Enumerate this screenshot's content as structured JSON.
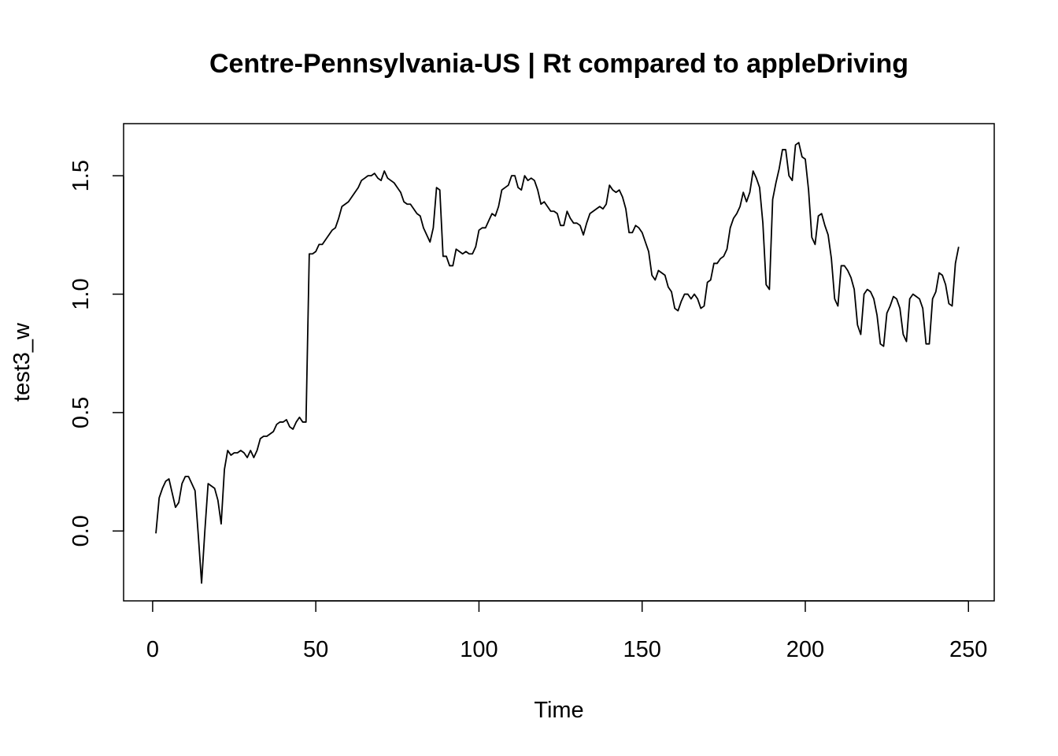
{
  "chart_data": {
    "type": "line",
    "title": "Centre-Pennsylvania-US | Rt compared to appleDriving",
    "xlabel": "Time",
    "ylabel": "test3_w",
    "xlim": [
      -8.9,
      257.9
    ],
    "ylim": [
      -0.295,
      1.72
    ],
    "xticks": [
      0,
      50,
      100,
      150,
      200,
      250
    ],
    "yticks": [
      0.0,
      0.5,
      1.0,
      1.5
    ],
    "xtick_labels": [
      "0",
      "50",
      "100",
      "150",
      "200",
      "250"
    ],
    "ytick_labels": [
      "0.0",
      "0.5",
      "1.0",
      "1.5"
    ],
    "grid": false,
    "legend": "none",
    "line_color": "#000000",
    "series": [
      {
        "values": [
          -0.01,
          0.14,
          0.18,
          0.21,
          0.22,
          0.16,
          0.1,
          0.12,
          0.2,
          0.23,
          0.23,
          0.2,
          0.17,
          -0.02,
          -0.22,
          0.0,
          0.2,
          0.19,
          0.18,
          0.13,
          0.03,
          0.26,
          0.34,
          0.32,
          0.33,
          0.33,
          0.34,
          0.33,
          0.31,
          0.34,
          0.31,
          0.34,
          0.39,
          0.4,
          0.4,
          0.41,
          0.42,
          0.45,
          0.46,
          0.46,
          0.47,
          0.44,
          0.43,
          0.46,
          0.48,
          0.46,
          0.46,
          1.17,
          1.17,
          1.18,
          1.21,
          1.21,
          1.23,
          1.25,
          1.27,
          1.28,
          1.32,
          1.37,
          1.38,
          1.39,
          1.41,
          1.43,
          1.45,
          1.48,
          1.49,
          1.5,
          1.5,
          1.51,
          1.49,
          1.48,
          1.52,
          1.49,
          1.48,
          1.47,
          1.45,
          1.43,
          1.39,
          1.38,
          1.38,
          1.36,
          1.34,
          1.33,
          1.28,
          1.25,
          1.22,
          1.28,
          1.45,
          1.44,
          1.16,
          1.16,
          1.12,
          1.12,
          1.19,
          1.18,
          1.17,
          1.18,
          1.17,
          1.17,
          1.2,
          1.27,
          1.28,
          1.28,
          1.31,
          1.34,
          1.33,
          1.37,
          1.44,
          1.45,
          1.46,
          1.5,
          1.5,
          1.45,
          1.44,
          1.5,
          1.48,
          1.49,
          1.48,
          1.44,
          1.38,
          1.39,
          1.37,
          1.35,
          1.35,
          1.34,
          1.29,
          1.29,
          1.35,
          1.32,
          1.3,
          1.3,
          1.29,
          1.25,
          1.3,
          1.34,
          1.35,
          1.36,
          1.37,
          1.36,
          1.38,
          1.46,
          1.44,
          1.43,
          1.44,
          1.41,
          1.36,
          1.26,
          1.26,
          1.29,
          1.28,
          1.26,
          1.22,
          1.18,
          1.08,
          1.06,
          1.1,
          1.09,
          1.08,
          1.03,
          1.01,
          0.94,
          0.93,
          0.97,
          1.0,
          1.0,
          0.98,
          1.0,
          0.98,
          0.94,
          0.95,
          1.05,
          1.06,
          1.13,
          1.13,
          1.15,
          1.16,
          1.19,
          1.28,
          1.32,
          1.34,
          1.37,
          1.43,
          1.39,
          1.43,
          1.52,
          1.49,
          1.45,
          1.3,
          1.04,
          1.02,
          1.4,
          1.47,
          1.53,
          1.61,
          1.61,
          1.5,
          1.48,
          1.63,
          1.64,
          1.58,
          1.57,
          1.44,
          1.24,
          1.21,
          1.33,
          1.34,
          1.29,
          1.25,
          1.15,
          0.98,
          0.95,
          1.12,
          1.12,
          1.1,
          1.07,
          1.02,
          0.87,
          0.83,
          1.0,
          1.02,
          1.01,
          0.98,
          0.91,
          0.79,
          0.78,
          0.92,
          0.95,
          0.99,
          0.98,
          0.94,
          0.83,
          0.8,
          0.98,
          1.0,
          0.99,
          0.98,
          0.94,
          0.79,
          0.79,
          0.98,
          1.01,
          1.09,
          1.08,
          1.04,
          0.96,
          0.95,
          1.13,
          1.2
        ]
      }
    ]
  }
}
